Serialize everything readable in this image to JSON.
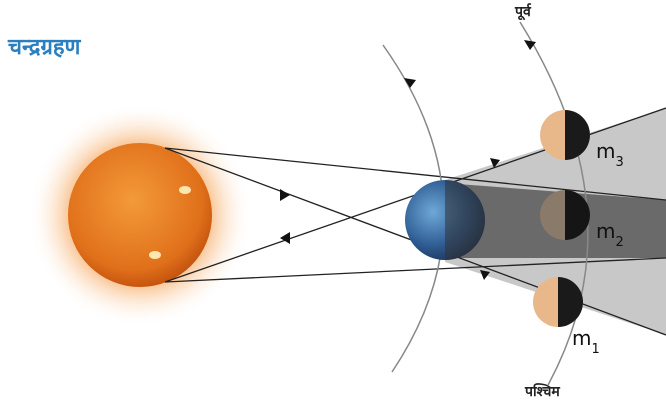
{
  "header": {
    "title": "चन्द्रग्रहण"
  },
  "directions": {
    "east": "पूर्व",
    "west": "पश्चिम"
  },
  "moons": [
    {
      "label": "m",
      "subscript": "3"
    },
    {
      "label": "m",
      "subscript": "2"
    },
    {
      "label": "m",
      "subscript": "1"
    }
  ]
}
